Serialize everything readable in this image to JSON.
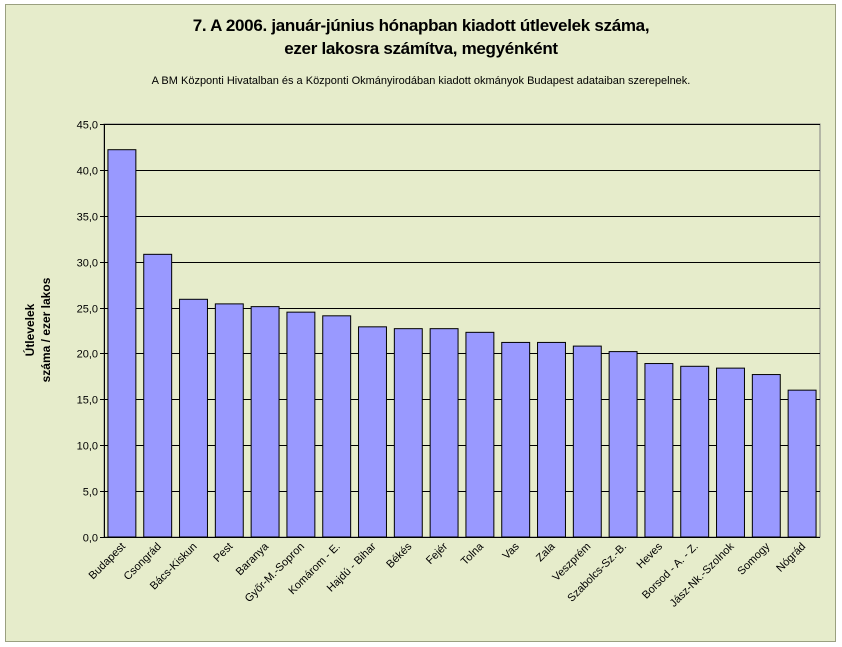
{
  "chart_data": {
    "type": "bar",
    "title_lines": [
      "7. A 2006. január-június hónapban kiadott útlevelek száma,",
      "ezer lakosra számítva, megyénként"
    ],
    "subtitle": "A BM Központi Hivatalban és a Központi Okmányirodában kiadott okmányok Budapest adataiban szerepelnek.",
    "ylabel_lines": [
      "Útlevelek",
      "száma / ezer lakos"
    ],
    "xlabel": "",
    "ylim": [
      0,
      45
    ],
    "ytick_step": 5,
    "yticks": [
      "0,0",
      "5,0",
      "10,0",
      "15,0",
      "20,0",
      "25,0",
      "30,0",
      "35,0",
      "40,0",
      "45,0"
    ],
    "grid": true,
    "legend": "none",
    "colors": {
      "bar": "#9999ff",
      "bar_border": "#000000",
      "plot_bg": "#e6eccb",
      "grid": "#000000"
    },
    "categories": [
      "Budapest",
      "Csongrád",
      "Bács-Kiskun",
      "Pest",
      "Baranya",
      "Győr-M.-Sopron",
      "Komárom - E.",
      "Hajdú - Bihar",
      "Békés",
      "Fejér",
      "Tolna",
      "Vas",
      "Zala",
      "Veszprém",
      "Szabolcs-Sz.-B.",
      "Heves",
      "Borsod - A. - Z.",
      "Jász-Nk.-Szolnok",
      "Somogy",
      "Nógrád"
    ],
    "values": [
      42.2,
      30.8,
      25.9,
      25.4,
      25.1,
      24.5,
      24.1,
      22.9,
      22.7,
      22.7,
      22.3,
      21.2,
      21.2,
      20.8,
      20.2,
      18.9,
      18.6,
      18.4,
      17.7,
      16.0
    ]
  }
}
